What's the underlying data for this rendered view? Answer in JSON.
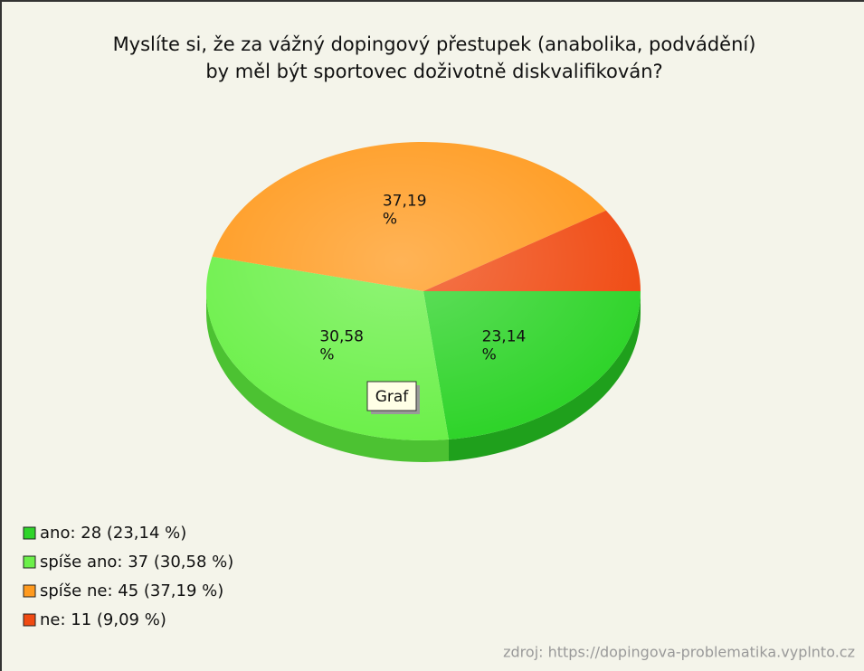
{
  "chart_data": {
    "type": "pie",
    "title": "Myslíte si, že za vážný dopingový přestupek (anabolika, podvádění)",
    "subtitle": "by měl být sportovec doživotně diskvalifikován?",
    "categories": [
      "ano: 28 (23,14 %)",
      "spíše ano: 37 (30,58 %)",
      "spíše ne: 45 (37,19 %)",
      "ne: 11 (9,09 %)"
    ],
    "values": [
      23.14,
      30.58,
      37.19,
      9.09
    ],
    "value_labels": [
      "23,14 %",
      "30,58 %",
      "37,19 %",
      null
    ],
    "colors": [
      "#2fd42a",
      "#6cf04a",
      "#ff9a1e",
      "#f04a12"
    ],
    "side_colors": [
      "#1fa01c",
      "#4cc232",
      "#d2780e",
      "#b8350a"
    ],
    "tooltip": "Graf",
    "source": "zdroj: https://dopingova-problematika.vyplnto.cz"
  }
}
